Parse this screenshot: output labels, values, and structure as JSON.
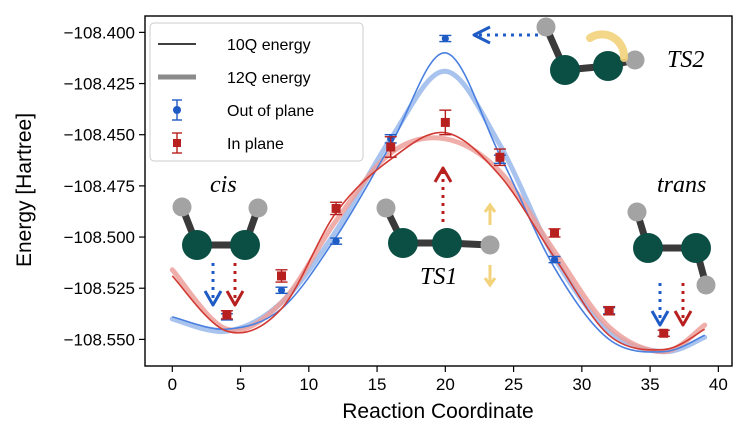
{
  "chart_data": {
    "type": "line",
    "xlabel": "Reaction Coordinate",
    "ylabel": "Energy [Hartree]",
    "xlim": [
      -2,
      41
    ],
    "ylim": [
      -108.563,
      -108.392
    ],
    "x_ticks": [
      "0",
      "5",
      "10",
      "15",
      "20",
      "25",
      "30",
      "35",
      "40"
    ],
    "y_ticks": [
      "−108.400",
      "−108.425",
      "−108.450",
      "−108.475",
      "−108.500",
      "−108.525",
      "−108.550"
    ],
    "x_tick_values": [
      0,
      5,
      10,
      15,
      20,
      25,
      30,
      35,
      40
    ],
    "y_tick_values": [
      -108.4,
      -108.425,
      -108.45,
      -108.475,
      -108.5,
      -108.525,
      -108.55
    ],
    "legend": {
      "placement": "top-left",
      "entries": [
        "10Q energy",
        "12Q energy",
        "Out of plane",
        "In plane"
      ]
    },
    "series": [
      {
        "name": "10Q energy",
        "group": "out_of_plane",
        "style": "thin",
        "color": "#4a80e0",
        "x": [
          0,
          4,
          8,
          12,
          16,
          20,
          24,
          28,
          32,
          36,
          39
        ],
        "y": [
          -108.539,
          -108.545,
          -108.535,
          -108.5,
          -108.455,
          -108.41,
          -108.46,
          -108.515,
          -108.55,
          -108.556,
          -108.548
        ]
      },
      {
        "name": "10Q energy",
        "group": "in_plane",
        "style": "thin",
        "color": "#d23a34",
        "x": [
          0,
          4,
          8,
          12,
          16,
          20,
          24,
          28,
          32,
          36,
          39
        ],
        "y": [
          -108.519,
          -108.546,
          -108.535,
          -108.488,
          -108.462,
          -108.449,
          -108.47,
          -108.51,
          -108.548,
          -108.555,
          -108.545
        ]
      },
      {
        "name": "12Q energy",
        "group": "out_of_plane",
        "style": "thick",
        "color": "#9ab8ec",
        "x": [
          0,
          4,
          8,
          12,
          16,
          20,
          24,
          28,
          32,
          36,
          39
        ],
        "y": [
          -108.54,
          -108.546,
          -108.532,
          -108.497,
          -108.452,
          -108.419,
          -108.455,
          -108.51,
          -108.546,
          -108.556,
          -108.549
        ]
      },
      {
        "name": "12Q energy",
        "group": "in_plane",
        "style": "thick",
        "color": "#eca09a",
        "x": [
          0,
          4,
          8,
          12,
          16,
          20,
          24,
          28,
          32,
          36,
          39
        ],
        "y": [
          -108.516,
          -108.545,
          -108.532,
          -108.492,
          -108.459,
          -108.452,
          -108.468,
          -108.507,
          -108.544,
          -108.556,
          -108.543
        ]
      }
    ],
    "points": [
      {
        "name": "Out of plane",
        "marker": "circle",
        "color": "#1f5bc4",
        "x": [
          4,
          8,
          12,
          16,
          20,
          24,
          28,
          32,
          36
        ],
        "y": [
          -108.539,
          -108.526,
          -108.502,
          -108.452,
          -108.403,
          -108.462,
          -108.511,
          -108.536,
          -108.547
        ],
        "err": [
          0.0015,
          0.0015,
          0.0015,
          0.002,
          0.0015,
          0.002,
          0.0015,
          0.0015,
          0.0015
        ]
      },
      {
        "name": "In plane",
        "marker": "square",
        "color": "#b8201f",
        "x": [
          4,
          8,
          12,
          16,
          20,
          24,
          28,
          32,
          36
        ],
        "y": [
          -108.538,
          -108.519,
          -108.486,
          -108.456,
          -108.444,
          -108.461,
          -108.498,
          -108.536,
          -108.547
        ],
        "err": [
          0.002,
          0.003,
          0.003,
          0.005,
          0.006,
          0.004,
          0.002,
          0.002,
          0.0015
        ]
      }
    ],
    "annotations": {
      "cis": "cis",
      "trans": "trans",
      "ts1": "TS1",
      "ts2": "TS2"
    }
  }
}
